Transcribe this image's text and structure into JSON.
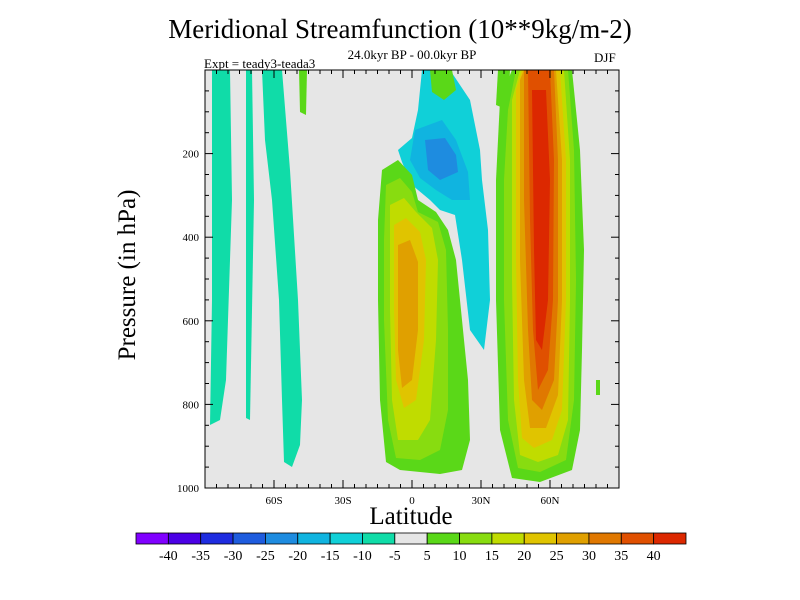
{
  "chart_data": {
    "type": "heatmap",
    "title": "Meridional Streamfunction (10**9kg/m-2)",
    "subtitle": "24.0kyr BP - 00.0kyr BP",
    "experiment": "Expt = teady3-teada3",
    "season": "DJF",
    "xlabel": "Latitude",
    "ylabel": "Pressure (in hPa)",
    "xlim": [
      -90,
      90
    ],
    "ylim": [
      0,
      1000
    ],
    "y_reversed": true,
    "x_ticks": [
      {
        "value": -60,
        "label": "60S"
      },
      {
        "value": -30,
        "label": "30S"
      },
      {
        "value": 0,
        "label": "0"
      },
      {
        "value": 30,
        "label": "30N"
      },
      {
        "value": 60,
        "label": "60N"
      }
    ],
    "y_ticks": [
      {
        "value": 200,
        "label": "200"
      },
      {
        "value": 400,
        "label": "400"
      },
      {
        "value": 600,
        "label": "600"
      },
      {
        "value": 800,
        "label": "800"
      },
      {
        "value": 1000,
        "label": "1000"
      }
    ],
    "background_color": "#e6e6e6",
    "colorbar": {
      "levels": [
        "-40",
        "-35",
        "-30",
        "-25",
        "-20",
        "-15",
        "-10",
        "-5",
        "5",
        "10",
        "15",
        "20",
        "25",
        "30",
        "35",
        "40"
      ],
      "colors": [
        "#8000ff",
        "#4b00e6",
        "#1e2ce0",
        "#1e5cde",
        "#1e8ce0",
        "#10b4e0",
        "#10d0d8",
        "#10dca8",
        "#e6e6e6",
        "#5ad818",
        "#88dc10",
        "#c0dc00",
        "#e0c400",
        "#e0a000",
        "#e07800",
        "#e05000",
        "#dc2800"
      ]
    },
    "features": [
      {
        "name": "nh-positive-cell",
        "description": "strong positive column, peak about +40",
        "lat_range": [
          40,
          70
        ],
        "pressure_range": [
          0,
          980
        ],
        "peak": 40
      },
      {
        "name": "tropical-positive-cell",
        "description": "positive cell near equator, peak about +30",
        "lat_range": [
          -25,
          20
        ],
        "pressure_range": [
          300,
          950
        ],
        "peak": 30
      },
      {
        "name": "upper-tropical-negative",
        "description": "negative region aloft, about -20",
        "lat_range": [
          -5,
          30
        ],
        "pressure_range": [
          100,
          500
        ],
        "peak": -20
      },
      {
        "name": "sh-negative-strips",
        "description": "weak negative strips about -10",
        "lat_range": [
          -90,
          -40
        ],
        "pressure_range": [
          0,
          960
        ],
        "peak": -10
      }
    ]
  }
}
